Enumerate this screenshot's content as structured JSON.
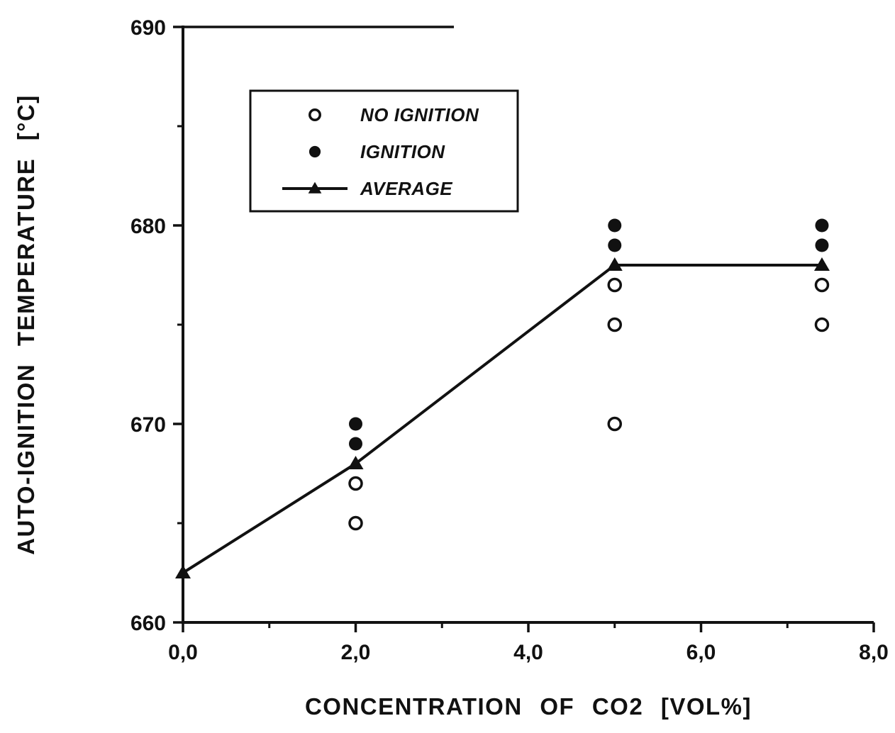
{
  "figure": {
    "background": "#ffffff",
    "foreground": "#111111"
  },
  "chart_data": {
    "type": "scatter",
    "title": "",
    "xlabel": "CONCENTRATION OF CO2 [VOL%]",
    "ylabel": "AUTO-IGNITION TEMPERATURE [°C]",
    "xlim": [
      0.0,
      8.0
    ],
    "ylim": [
      660,
      690
    ],
    "grid": false,
    "x_major_ticks": [
      0,
      2,
      4,
      6,
      8
    ],
    "x_minor_ticks": [
      1,
      3,
      5,
      7
    ],
    "x_tick_labels": [
      "0,0",
      "2,0",
      "4,0",
      "6,0",
      "8,0"
    ],
    "y_major_ticks": [
      660,
      670,
      680,
      690
    ],
    "y_minor_ticks": [
      665,
      675,
      685
    ],
    "y_tick_labels": [
      "660",
      "670",
      "680",
      "690"
    ],
    "legend": {
      "position": "top-left-inside",
      "entries": [
        "NO IGNITION",
        "IGNITION",
        "AVERAGE"
      ]
    },
    "series": [
      {
        "name": "NO IGNITION",
        "type": "scatter",
        "marker": "open-circle",
        "points": [
          [
            2.0,
            665
          ],
          [
            2.0,
            667
          ],
          [
            5.0,
            670
          ],
          [
            5.0,
            675
          ],
          [
            5.0,
            677
          ],
          [
            7.4,
            675
          ],
          [
            7.4,
            677
          ]
        ]
      },
      {
        "name": "IGNITION",
        "type": "scatter",
        "marker": "filled-circle",
        "points": [
          [
            2.0,
            669
          ],
          [
            2.0,
            670
          ],
          [
            5.0,
            679
          ],
          [
            5.0,
            680
          ],
          [
            7.4,
            679
          ],
          [
            7.4,
            680
          ]
        ]
      },
      {
        "name": "AVERAGE",
        "type": "line+scatter",
        "marker": "filled-triangle",
        "points": [
          [
            0.0,
            662.5
          ],
          [
            2.0,
            668
          ],
          [
            5.0,
            678
          ],
          [
            7.4,
            678
          ]
        ]
      }
    ],
    "colors": {
      "foreground": "#111111",
      "background": "#ffffff"
    }
  }
}
